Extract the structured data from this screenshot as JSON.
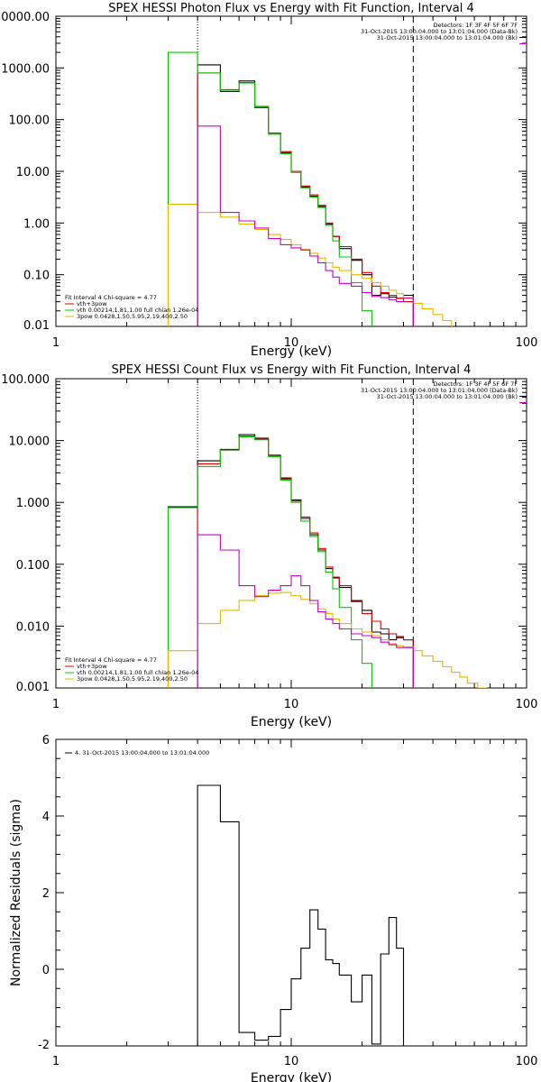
{
  "chart_data": [
    {
      "type": "line",
      "title": "SPEX HESSI Photon Flux vs Energy with Fit Function, Interval 4",
      "xlabel": "Energy (keV)",
      "ylabel": "",
      "xscale": "log",
      "yscale": "log",
      "xlim": [
        1,
        100
      ],
      "ylim": [
        0.01,
        10000
      ],
      "x_ticks": [
        {
          "value": 1,
          "label": "1"
        },
        {
          "value": 10,
          "label": "10"
        },
        {
          "value": 100,
          "label": "100"
        }
      ],
      "y_ticks": [
        {
          "value": 10000,
          "label": "10000.00"
        },
        {
          "value": 1000,
          "label": "1000.00"
        },
        {
          "value": 100,
          "label": "100.00"
        },
        {
          "value": 10,
          "label": "10.00"
        },
        {
          "value": 1,
          "label": "1.00"
        },
        {
          "value": 0.1,
          "label": "0.10"
        },
        {
          "value": 0.01,
          "label": "0.01"
        }
      ],
      "vlines": [
        {
          "x": 4.0,
          "style": "dotted"
        },
        {
          "x": 33.0,
          "style": "dashed"
        }
      ],
      "header_lines": [
        "Detectors: 1F 3F 4F 5F 6F 7F",
        "31-Oct-2015 13:00:04.000 to 13:01:04.000 (Data-Bk)",
        "31-Oct-2015 13:00:04.000 to 13:01:04.000 (Bk)"
      ],
      "legend": {
        "position": "bottom-left",
        "title": "Fit Interval 4   Chi-square = 4.77",
        "entries": [
          {
            "label": "vth+3pow",
            "color": "#dd0000"
          },
          {
            "label": "vth 0.00214,1.81,1.00  full chian 1.26e-04",
            "color": "#00cc00"
          },
          {
            "label": "3pow 0.0428,1.50,5.95,2.19,400,2.50",
            "color": "#e6b800"
          }
        ]
      },
      "series": [
        {
          "name": "",
          "color": "#000000",
          "edges": [
            4.0,
            5.0,
            6.0,
            7.0,
            8.0,
            9.0,
            10.0,
            11.0,
            12.0,
            13.0,
            14.0,
            15.0,
            16.0,
            18.0,
            20.0,
            22.0,
            24.0,
            26.0,
            28.0,
            30.0,
            33.0
          ],
          "values": [
            1150,
            350,
            560,
            170,
            55,
            23,
            10,
            5,
            3.3,
            2.1,
            0.95,
            0.55,
            0.32,
            0.19,
            0.1,
            0.04,
            0.043,
            0.037,
            0.035,
            0.04
          ]
        },
        {
          "name": "",
          "color": "#dd0000",
          "edges": [
            4.0,
            5.0,
            6.0,
            7.0,
            8.0,
            9.0,
            10.0,
            11.0,
            12.0,
            13.0,
            14.0,
            15.0,
            16.0,
            18.0,
            20.0,
            22.0,
            24.0,
            26.0,
            28.0,
            30.0,
            33.0
          ],
          "values": [
            800,
            380,
            520,
            180,
            55,
            24,
            10,
            5.2,
            3.5,
            2.2,
            1.0,
            0.55,
            0.35,
            0.2,
            0.11,
            0.06,
            0.045,
            0.04,
            0.035,
            0.03
          ]
        },
        {
          "name": "",
          "color": "#00cc00",
          "edges": [
            3.0,
            4.0,
            5.0,
            6.0,
            7.0,
            8.0,
            9.0,
            10.0,
            11.0,
            12.0,
            13.0,
            14.0,
            15.0,
            16.0,
            18.0,
            20.0,
            22.0
          ],
          "values": [
            2000,
            800,
            370,
            510,
            175,
            52,
            22,
            9.5,
            4.8,
            3.2,
            2.0,
            0.9,
            0.45,
            0.22,
            0.07,
            0.02,
            0.005
          ]
        },
        {
          "name": "",
          "color": "#e6b800",
          "edges": [
            3.0,
            4.0,
            5.0,
            6.0,
            7.0,
            8.0,
            9.0,
            10.0,
            11.0,
            12.0,
            13.0,
            14.0,
            15.0,
            16.0,
            18.0,
            20.0,
            22.0,
            24.0,
            26.0,
            28.0,
            30.0,
            33.0,
            36.0,
            40.0,
            44.0,
            48.0
          ],
          "values": [
            2.3,
            1.6,
            1.3,
            0.95,
            0.75,
            0.6,
            0.48,
            0.38,
            0.31,
            0.26,
            0.21,
            0.17,
            0.14,
            0.12,
            0.1,
            0.085,
            0.07,
            0.06,
            0.05,
            0.043,
            0.036,
            0.028,
            0.022,
            0.017,
            0.013
          ]
        },
        {
          "name": "",
          "color": "#cc00cc",
          "edges": [
            4.0,
            5.0,
            6.0,
            7.0,
            8.0,
            9.0,
            10.0,
            11.0,
            12.0,
            13.0,
            14.0,
            15.0,
            16.0,
            18.0,
            20.0,
            22.0,
            24.0,
            26.0,
            28.0,
            30.0,
            33.0
          ],
          "values": [
            75,
            1.6,
            1.1,
            0.8,
            0.5,
            0.38,
            0.33,
            0.3,
            0.23,
            0.17,
            0.12,
            0.09,
            0.068,
            0.06,
            0.045,
            0.038,
            0.036,
            0.033,
            0.03,
            0.035
          ]
        }
      ]
    },
    {
      "type": "line",
      "title": "SPEX HESSI Count Flux vs Energy with Fit Function, Interval 4",
      "xlabel": "Energy (keV)",
      "ylabel": "",
      "xscale": "log",
      "yscale": "log",
      "xlim": [
        1,
        100
      ],
      "ylim": [
        0.001,
        100
      ],
      "x_ticks": [
        {
          "value": 1,
          "label": "1"
        },
        {
          "value": 10,
          "label": "10"
        },
        {
          "value": 100,
          "label": "100"
        }
      ],
      "y_ticks": [
        {
          "value": 100,
          "label": "100.000"
        },
        {
          "value": 10,
          "label": "10.000"
        },
        {
          "value": 1,
          "label": "1.000"
        },
        {
          "value": 0.1,
          "label": "0.100"
        },
        {
          "value": 0.01,
          "label": "0.010"
        },
        {
          "value": 0.001,
          "label": "0.001"
        }
      ],
      "vlines": [
        {
          "x": 4.0,
          "style": "dotted"
        },
        {
          "x": 33.0,
          "style": "dashed"
        }
      ],
      "header_lines": [
        "Detectors: 1F 3F 4F 5F 6F 7F",
        "31-Oct-2015 13:00:04.000 to 13:01:04.000 (Data-Bk)",
        "31-Oct-2015 13:00:04.000 to 13:01:04.000 (Bk)"
      ],
      "legend": {
        "position": "bottom-left",
        "title": "Fit Interval 4   Chi-square = 4.77",
        "entries": [
          {
            "label": "vth+3pow",
            "color": "#dd0000"
          },
          {
            "label": "vth 0.00214,1.81,1.00  full chian 1.26e-04",
            "color": "#00cc00"
          },
          {
            "label": "3pow 0.0428,1.50,5.95,2.19,400,2.50",
            "color": "#e6b800"
          }
        ]
      },
      "series": [
        {
          "name": "",
          "color": "#000000",
          "edges": [
            3.0,
            4.0,
            5.0,
            6.0,
            7.0,
            8.0,
            9.0,
            10.0,
            11.0,
            12.0,
            13.0,
            14.0,
            15.0,
            16.0,
            18.0,
            20.0,
            22.0,
            24.0,
            26.0,
            28.0,
            30.0,
            33.0
          ],
          "values": [
            0.85,
            4.7,
            7.2,
            12.5,
            10.5,
            5.8,
            2.4,
            1.1,
            0.55,
            0.3,
            0.17,
            0.085,
            0.06,
            0.042,
            0.025,
            0.018,
            0.008,
            0.0075,
            0.006,
            0.0065,
            0.006
          ]
        },
        {
          "name": "",
          "color": "#dd0000",
          "edges": [
            4.0,
            5.0,
            6.0,
            7.0,
            8.0,
            9.0,
            10.0,
            11.0,
            12.0,
            13.0,
            14.0,
            15.0,
            16.0,
            18.0,
            20.0,
            22.0,
            24.0,
            26.0,
            28.0,
            30.0,
            33.0
          ],
          "values": [
            4.2,
            7.0,
            11.8,
            11.0,
            5.7,
            2.5,
            1.05,
            0.58,
            0.32,
            0.18,
            0.09,
            0.062,
            0.045,
            0.026,
            0.016,
            0.012,
            0.009,
            0.0075,
            0.0068,
            0.006
          ]
        },
        {
          "name": "",
          "color": "#00cc00",
          "edges": [
            3.0,
            4.0,
            5.0,
            6.0,
            7.0,
            8.0,
            9.0,
            10.0,
            11.0,
            12.0,
            13.0,
            14.0,
            15.0,
            16.0,
            18.0,
            20.0,
            22.0
          ],
          "values": [
            0.82,
            3.8,
            7.0,
            11.5,
            10.3,
            5.5,
            2.3,
            1.0,
            0.5,
            0.28,
            0.16,
            0.075,
            0.04,
            0.02,
            0.006,
            0.0025,
            0.0008
          ]
        },
        {
          "name": "",
          "color": "#e6b800",
          "edges": [
            3.0,
            4.0,
            5.0,
            6.0,
            7.0,
            8.0,
            9.0,
            10.0,
            11.0,
            12.0,
            13.0,
            14.0,
            15.0,
            16.0,
            18.0,
            20.0,
            22.0,
            24.0,
            26.0,
            28.0,
            30.0,
            33.0,
            36.0,
            40.0,
            44.0,
            48.0,
            52.0,
            56.0,
            62.0,
            68.0
          ],
          "values": [
            0.004,
            0.011,
            0.018,
            0.026,
            0.031,
            0.034,
            0.035,
            0.031,
            0.027,
            0.023,
            0.019,
            0.016,
            0.013,
            0.011,
            0.009,
            0.008,
            0.007,
            0.006,
            0.0052,
            0.0048,
            0.0046,
            0.004,
            0.0033,
            0.0027,
            0.0022,
            0.0018,
            0.0015,
            0.0012,
            0.001
          ]
        },
        {
          "name": "",
          "color": "#cc00cc",
          "edges": [
            4.0,
            5.0,
            6.0,
            7.0,
            8.0,
            9.0,
            10.0,
            11.0,
            12.0,
            13.0,
            14.0,
            15.0,
            16.0,
            18.0,
            20.0,
            22.0,
            24.0,
            26.0,
            28.0,
            30.0,
            33.0
          ],
          "values": [
            0.3,
            0.17,
            0.045,
            0.03,
            0.038,
            0.045,
            0.065,
            0.045,
            0.026,
            0.017,
            0.013,
            0.011,
            0.009,
            0.0075,
            0.007,
            0.0065,
            0.0055,
            0.005,
            0.0045,
            0.0045
          ]
        }
      ]
    },
    {
      "type": "line",
      "title": "",
      "xlabel": "Energy (keV)",
      "ylabel": "Normalized Residuals (sigma)",
      "xscale": "log",
      "yscale": "linear",
      "xlim": [
        1,
        100
      ],
      "ylim": [
        -2,
        6
      ],
      "x_ticks": [
        {
          "value": 1,
          "label": "1"
        },
        {
          "value": 10,
          "label": "10"
        },
        {
          "value": 100,
          "label": "100"
        }
      ],
      "y_ticks": [
        {
          "value": 6,
          "label": "6"
        },
        {
          "value": 4,
          "label": "4"
        },
        {
          "value": 2,
          "label": "2"
        },
        {
          "value": 0,
          "label": "0"
        },
        {
          "value": -2,
          "label": "-2"
        }
      ],
      "legend": {
        "position": "top-left",
        "entries": [
          {
            "label": "4. 31-Oct-2015 13:00:04.000 to 13:01:04.000",
            "color": "#000000"
          }
        ]
      },
      "series": [
        {
          "name": "4. 31-Oct-2015 13:00:04.000 to 13:01:04.000",
          "color": "#000000",
          "edges": [
            4.0,
            5.0,
            6.0,
            7.0,
            8.0,
            9.0,
            10.0,
            11.0,
            12.0,
            13.0,
            14.0,
            15.0,
            16.0,
            18.0,
            20.0,
            22.0,
            24.0,
            26.0,
            28.0,
            30.0,
            33.0
          ],
          "values": [
            4.8,
            3.85,
            -1.65,
            -1.85,
            -1.75,
            -1.05,
            -0.25,
            0.55,
            1.55,
            1.05,
            0.25,
            0.15,
            -0.15,
            -0.85,
            -0.15,
            -1.95,
            0.4,
            1.35,
            0.55,
            -2.0
          ]
        }
      ]
    }
  ]
}
